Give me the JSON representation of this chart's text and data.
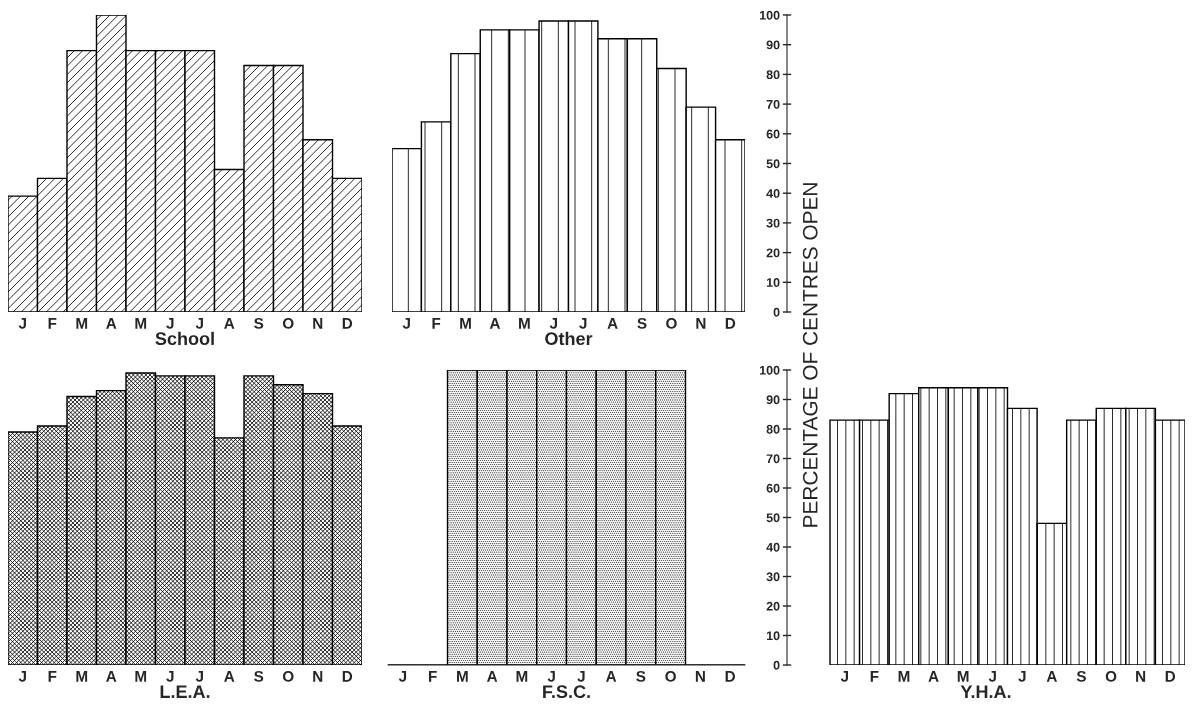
{
  "chart_data": [
    {
      "type": "bar",
      "xlabel": "School",
      "categories": [
        "J",
        "F",
        "M",
        "A",
        "M",
        "J",
        "J",
        "A",
        "S",
        "O",
        "N",
        "D"
      ],
      "values": [
        39,
        45,
        88,
        100,
        88,
        88,
        88,
        48,
        83,
        83,
        58,
        45
      ],
      "color": "#000000",
      "ylim": [
        0,
        100
      ],
      "tick_labels": "x"
    },
    {
      "type": "bar",
      "xlabel": "Other",
      "categories": [
        "J",
        "F",
        "M",
        "A",
        "M",
        "J",
        "J",
        "A",
        "S",
        "O",
        "N",
        "D"
      ],
      "values": [
        55,
        64,
        87,
        95,
        95,
        98,
        98,
        92,
        92,
        82,
        69,
        58
      ],
      "color": "#000000",
      "ylim": [
        0,
        100
      ],
      "yticks": [
        0,
        10,
        20,
        30,
        40,
        50,
        60,
        70,
        80,
        90,
        100
      ]
    },
    {
      "type": "bar",
      "xlabel": "L.E.A.",
      "categories": [
        "J",
        "F",
        "M",
        "A",
        "M",
        "J",
        "J",
        "A",
        "S",
        "O",
        "N",
        "D"
      ],
      "values": [
        79,
        81,
        91,
        93,
        99,
        98,
        98,
        77,
        98,
        95,
        92,
        81
      ],
      "color": "#000000",
      "ylim": [
        0,
        100
      ],
      "tick_labels": "x"
    },
    {
      "type": "bar",
      "xlabel": "F.S.C.",
      "categories": [
        "J",
        "F",
        "M",
        "A",
        "M",
        "J",
        "J",
        "A",
        "S",
        "O",
        "N",
        "D"
      ],
      "values": [
        0,
        0,
        100,
        100,
        100,
        100,
        100,
        100,
        100,
        100,
        0,
        0
      ],
      "color": "#000000",
      "ylim": [
        0,
        100
      ],
      "tick_labels": "x"
    },
    {
      "type": "bar",
      "xlabel": "Y.H.A.",
      "ylabel": "PERCENTAGE OF CENTRES OPEN",
      "categories": [
        "J",
        "F",
        "M",
        "A",
        "M",
        "J",
        "J",
        "A",
        "S",
        "O",
        "N",
        "D"
      ],
      "values": [
        83,
        83,
        92,
        94,
        94,
        94,
        87,
        48,
        83,
        87,
        87,
        83
      ],
      "color": "#000000",
      "ylim": [
        0,
        100
      ],
      "yticks": [
        0,
        10,
        20,
        30,
        40,
        50,
        60,
        70,
        80,
        90,
        100
      ]
    }
  ]
}
